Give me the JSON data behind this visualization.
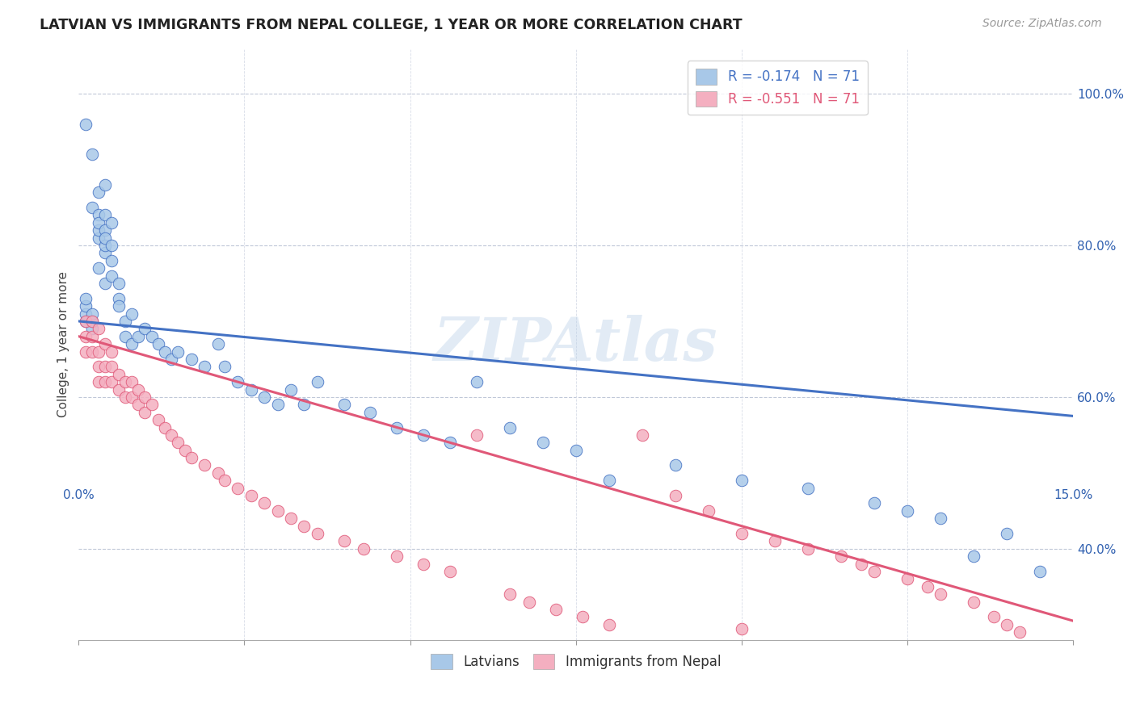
{
  "title": "LATVIAN VS IMMIGRANTS FROM NEPAL COLLEGE, 1 YEAR OR MORE CORRELATION CHART",
  "source": "Source: ZipAtlas.com",
  "ylabel": "College, 1 year or more",
  "legend_latvians": "Latvians",
  "legend_nepal": "Immigrants from Nepal",
  "r_latvian": -0.174,
  "n_latvian": 71,
  "r_nepal": -0.551,
  "n_nepal": 71,
  "xlim": [
    0.0,
    0.15
  ],
  "ylim": [
    0.28,
    1.06
  ],
  "x_tick_left": "0.0%",
  "x_tick_right": "15.0%",
  "y_ticks": [
    0.4,
    0.6,
    0.8,
    1.0
  ],
  "y_tick_labels": [
    "40.0%",
    "60.0%",
    "80.0%",
    "100.0%"
  ],
  "color_latvian": "#a8c8e8",
  "color_nepal": "#f4afc0",
  "line_color_latvian": "#4472c4",
  "line_color_nepal": "#e05878",
  "watermark": "ZIPAtlas",
  "lat_line_y0": 0.7,
  "lat_line_y1": 0.575,
  "nep_line_y0": 0.68,
  "nep_line_y1": 0.305,
  "latvian_x": [
    0.001,
    0.001,
    0.001,
    0.001,
    0.001,
    0.002,
    0.002,
    0.002,
    0.002,
    0.002,
    0.003,
    0.003,
    0.003,
    0.003,
    0.003,
    0.003,
    0.004,
    0.004,
    0.004,
    0.004,
    0.004,
    0.004,
    0.004,
    0.005,
    0.005,
    0.005,
    0.005,
    0.006,
    0.006,
    0.006,
    0.007,
    0.007,
    0.008,
    0.008,
    0.009,
    0.01,
    0.011,
    0.012,
    0.013,
    0.014,
    0.015,
    0.017,
    0.019,
    0.021,
    0.022,
    0.024,
    0.026,
    0.028,
    0.03,
    0.032,
    0.034,
    0.036,
    0.04,
    0.044,
    0.048,
    0.052,
    0.056,
    0.06,
    0.065,
    0.07,
    0.075,
    0.08,
    0.09,
    0.1,
    0.11,
    0.12,
    0.125,
    0.13,
    0.135,
    0.14,
    0.145
  ],
  "latvian_y": [
    0.7,
    0.71,
    0.72,
    0.73,
    0.96,
    0.7,
    0.71,
    0.69,
    0.92,
    0.85,
    0.84,
    0.81,
    0.82,
    0.83,
    0.77,
    0.87,
    0.79,
    0.8,
    0.82,
    0.84,
    0.75,
    0.81,
    0.88,
    0.78,
    0.76,
    0.8,
    0.83,
    0.73,
    0.75,
    0.72,
    0.7,
    0.68,
    0.71,
    0.67,
    0.68,
    0.69,
    0.68,
    0.67,
    0.66,
    0.65,
    0.66,
    0.65,
    0.64,
    0.67,
    0.64,
    0.62,
    0.61,
    0.6,
    0.59,
    0.61,
    0.59,
    0.62,
    0.59,
    0.58,
    0.56,
    0.55,
    0.54,
    0.62,
    0.56,
    0.54,
    0.53,
    0.49,
    0.51,
    0.49,
    0.48,
    0.46,
    0.45,
    0.44,
    0.39,
    0.42,
    0.37
  ],
  "nepal_x": [
    0.001,
    0.001,
    0.001,
    0.002,
    0.002,
    0.002,
    0.003,
    0.003,
    0.003,
    0.003,
    0.004,
    0.004,
    0.004,
    0.005,
    0.005,
    0.005,
    0.006,
    0.006,
    0.007,
    0.007,
    0.008,
    0.008,
    0.009,
    0.009,
    0.01,
    0.01,
    0.011,
    0.012,
    0.013,
    0.014,
    0.015,
    0.016,
    0.017,
    0.019,
    0.021,
    0.022,
    0.024,
    0.026,
    0.028,
    0.03,
    0.032,
    0.034,
    0.036,
    0.04,
    0.043,
    0.048,
    0.052,
    0.056,
    0.06,
    0.065,
    0.068,
    0.072,
    0.076,
    0.08,
    0.085,
    0.09,
    0.095,
    0.1,
    0.105,
    0.11,
    0.115,
    0.118,
    0.12,
    0.125,
    0.128,
    0.13,
    0.135,
    0.138,
    0.14,
    0.142,
    0.1
  ],
  "nepal_y": [
    0.7,
    0.68,
    0.66,
    0.7,
    0.68,
    0.66,
    0.69,
    0.66,
    0.64,
    0.62,
    0.67,
    0.64,
    0.62,
    0.66,
    0.64,
    0.62,
    0.63,
    0.61,
    0.62,
    0.6,
    0.62,
    0.6,
    0.61,
    0.59,
    0.6,
    0.58,
    0.59,
    0.57,
    0.56,
    0.55,
    0.54,
    0.53,
    0.52,
    0.51,
    0.5,
    0.49,
    0.48,
    0.47,
    0.46,
    0.45,
    0.44,
    0.43,
    0.42,
    0.41,
    0.4,
    0.39,
    0.38,
    0.37,
    0.55,
    0.34,
    0.33,
    0.32,
    0.31,
    0.3,
    0.55,
    0.47,
    0.45,
    0.42,
    0.41,
    0.4,
    0.39,
    0.38,
    0.37,
    0.36,
    0.35,
    0.34,
    0.33,
    0.31,
    0.3,
    0.29,
    0.295
  ]
}
